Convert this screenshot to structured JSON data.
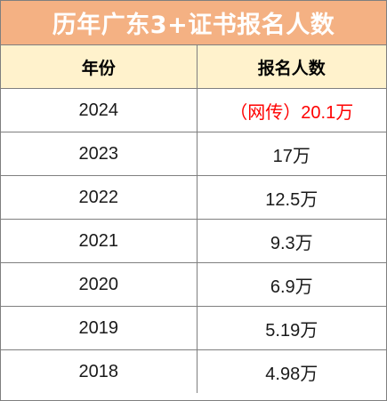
{
  "title": "历年广东3+证书报名人数",
  "headers": {
    "year": "年份",
    "count": "报名人数"
  },
  "rows": [
    {
      "year": "2024",
      "count": "（网传）20.1万",
      "highlight": true
    },
    {
      "year": "2023",
      "count": "17万"
    },
    {
      "year": "2022",
      "count": "12.5万"
    },
    {
      "year": "2021",
      "count": "9.3万"
    },
    {
      "year": "2020",
      "count": "6.9万"
    },
    {
      "year": "2019",
      "count": "5.19万"
    },
    {
      "year": "2018",
      "count": "4.98万"
    }
  ],
  "colors": {
    "title_bg": "#f4b183",
    "header_bg": "#fff2cc",
    "highlight_text": "#ff0000"
  }
}
